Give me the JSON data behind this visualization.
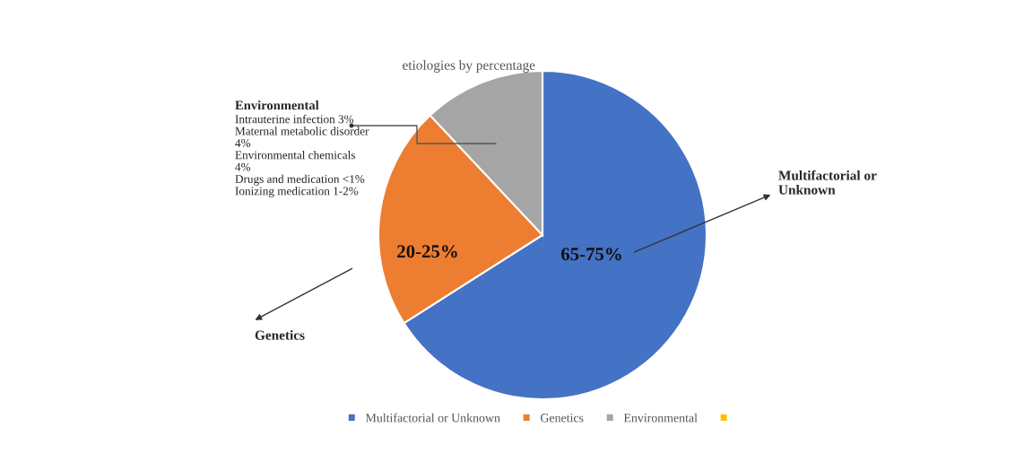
{
  "chart_data": {
    "type": "pie",
    "title": "etiologies by percentage",
    "categories": [
      "Multifactorial or Unknown",
      "Genetics",
      "Environmental",
      null
    ],
    "values": [
      66,
      22,
      12,
      0
    ],
    "colors": [
      "#4472c4",
      "#ed7d31",
      "#a5a5a5",
      "#ffc000"
    ],
    "annotations": [
      "65-75%",
      "20-25%",
      "Intrauterine infection 3%\nMaternal metabolic disorder\n4%\nEnvironmental chemicals\n4%\nDrugs and medication <1%\nIonizing medication 1-2%"
    ],
    "legend": "bottom"
  }
}
